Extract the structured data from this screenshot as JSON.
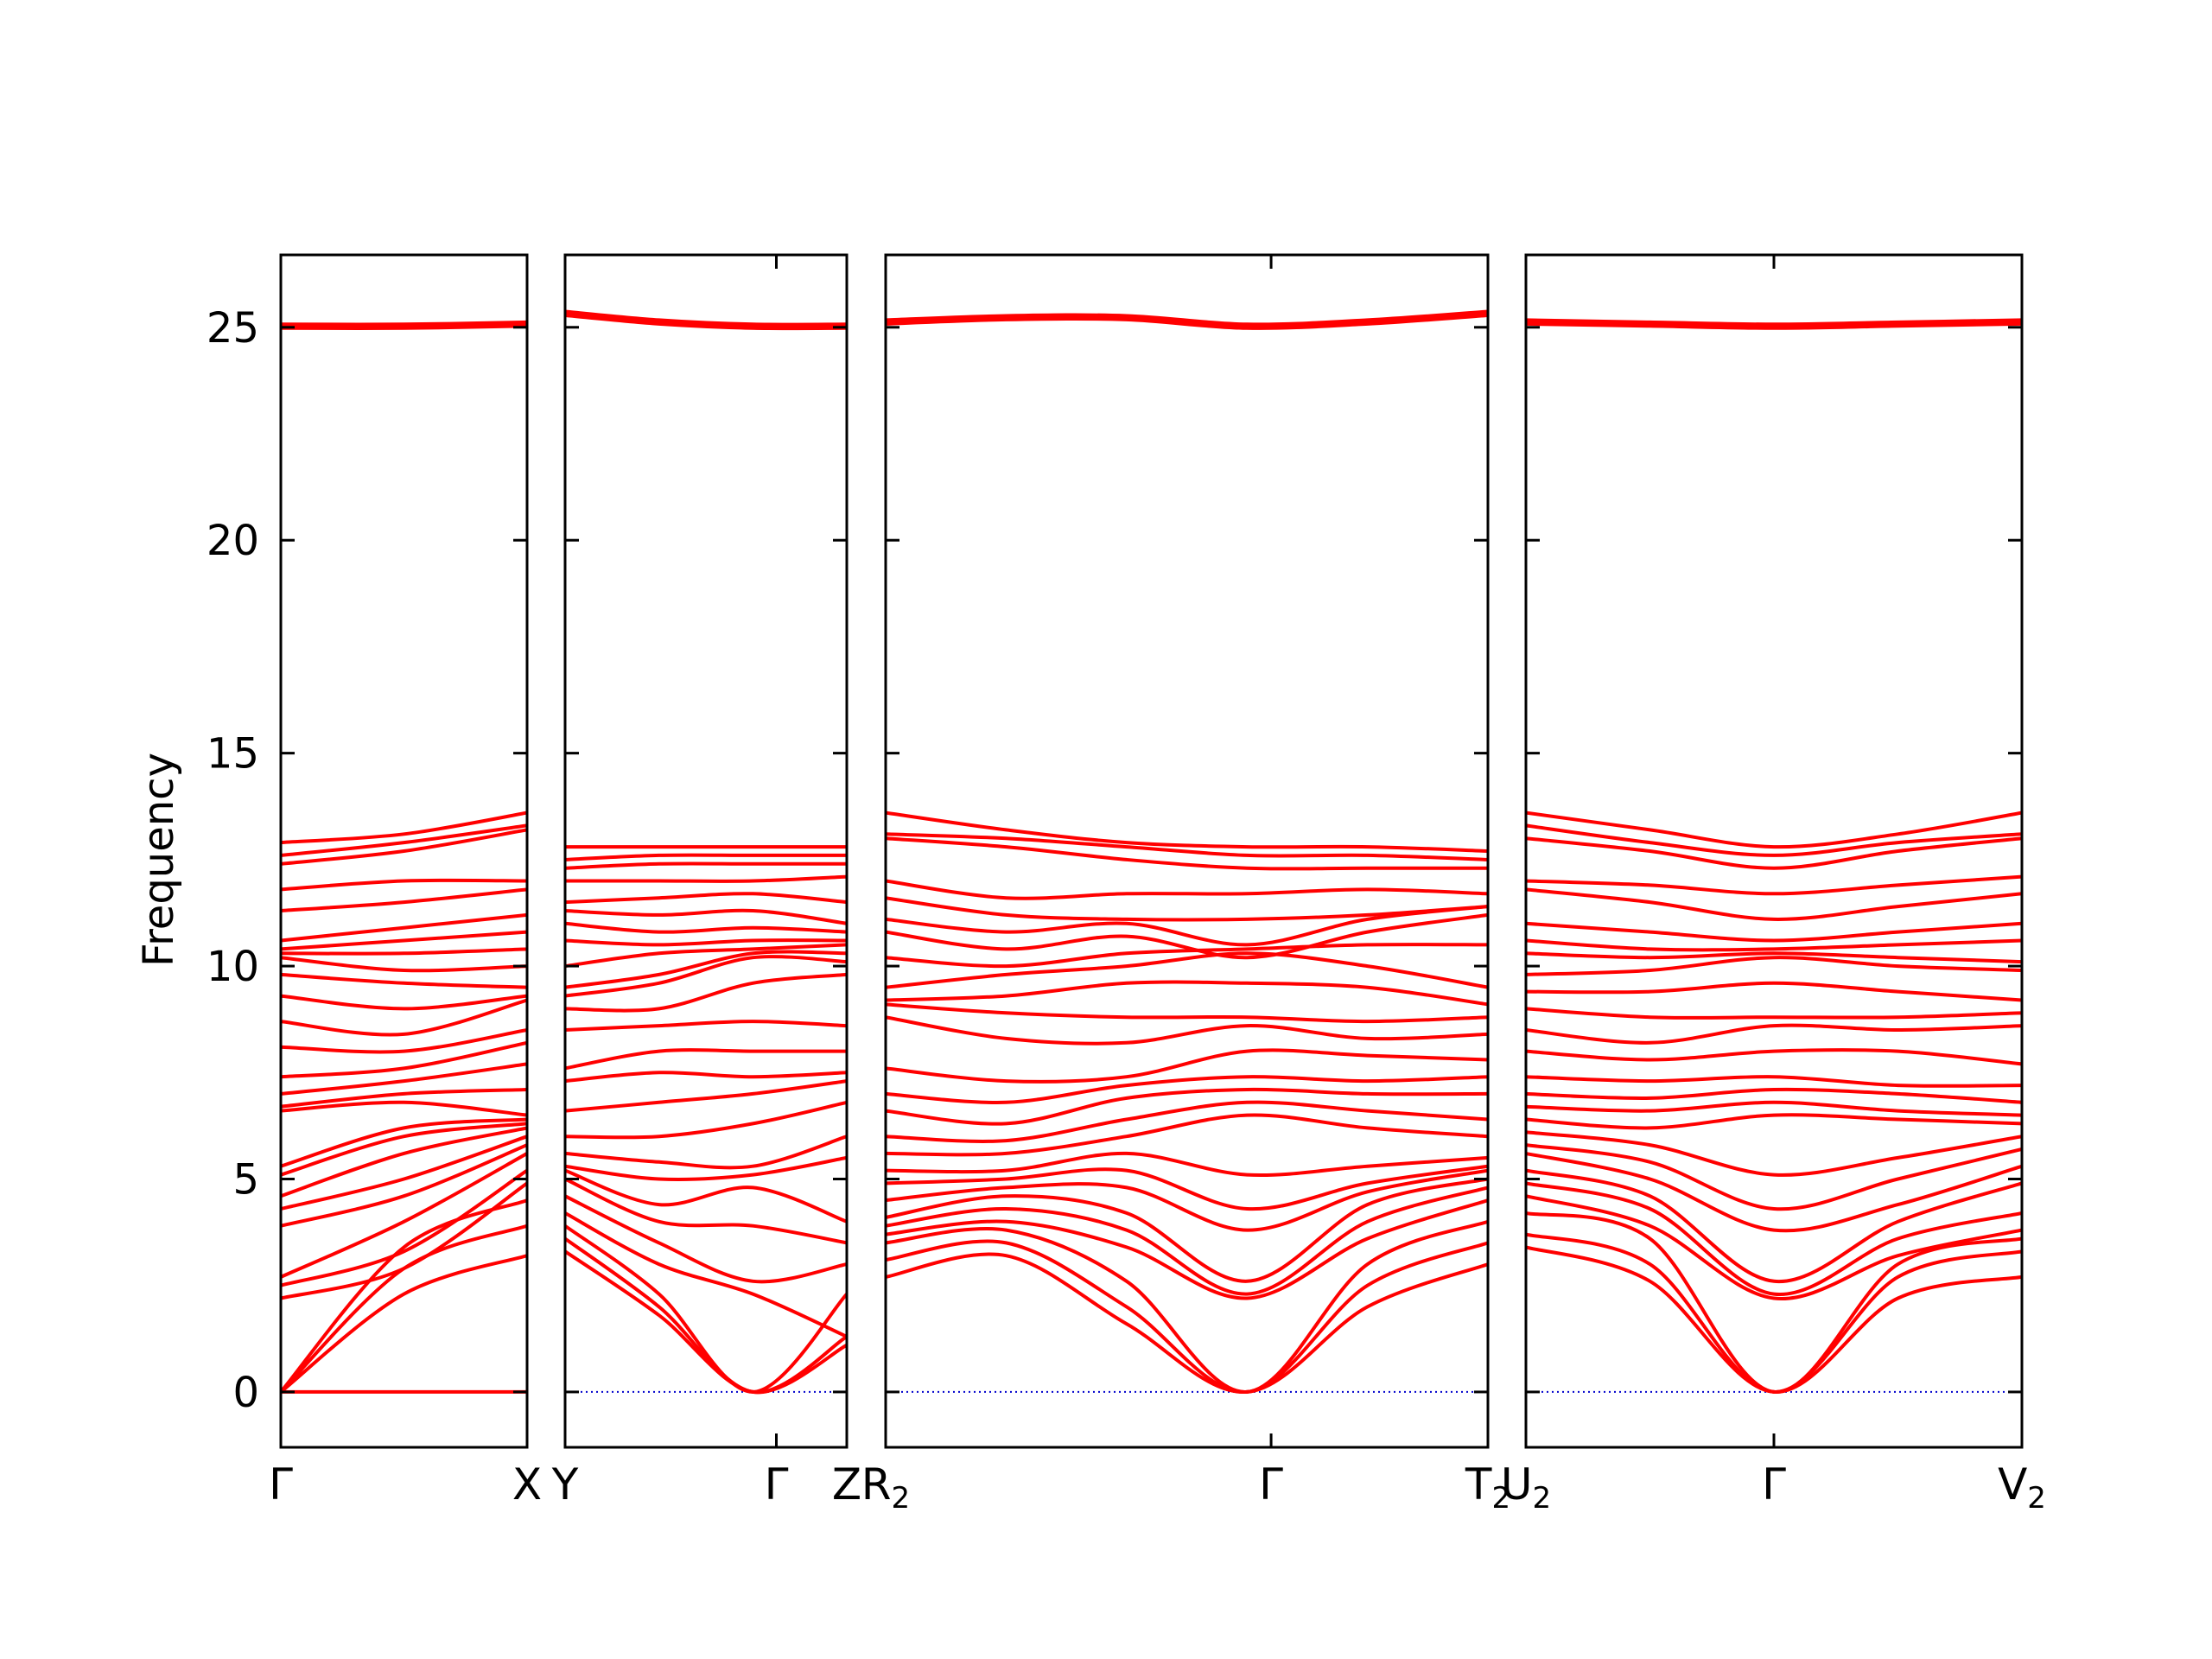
{
  "chart_data": {
    "type": "line",
    "title": "",
    "ylabel": "Frequency",
    "ylim": [
      -1.3,
      26.7
    ],
    "yticks": [
      "0",
      "5",
      "10",
      "15",
      "20",
      "25"
    ],
    "ytick_values": [
      0,
      5,
      10,
      15,
      20,
      25
    ],
    "line_color": "#ff0000",
    "zero_line_color": "#0000cc",
    "grid": false,
    "panels": [
      {
        "labels": [
          {
            "main": "Γ",
            "sub": "",
            "pos": 0.0
          },
          {
            "main": "X",
            "sub": "",
            "pos": 1.0
          }
        ],
        "branches_top": [
          [
            0.0,
            0.0,
            0.0
          ],
          [
            0.0,
            2.3,
            3.2
          ],
          [
            0.0,
            2.9,
            3.9
          ],
          [
            0.0,
            3.4,
            4.5
          ],
          [
            2.2,
            2.9,
            4.9
          ],
          [
            2.5,
            3.3,
            5.2
          ],
          [
            2.7,
            4.0,
            5.6
          ],
          [
            3.9,
            4.6,
            5.8
          ],
          [
            4.3,
            5.0,
            6.0
          ],
          [
            4.6,
            5.6,
            6.2
          ],
          [
            5.1,
            6.0,
            6.3
          ],
          [
            5.3,
            6.2,
            6.4
          ],
          [
            6.6,
            6.8,
            6.5
          ],
          [
            6.7,
            7.0,
            7.1
          ],
          [
            7.0,
            7.3,
            7.7
          ],
          [
            7.4,
            7.6,
            8.2
          ],
          [
            8.1,
            8.0,
            8.5
          ],
          [
            8.7,
            8.4,
            9.2
          ],
          [
            9.3,
            9.0,
            9.3
          ],
          [
            9.8,
            9.6,
            9.5
          ],
          [
            10.2,
            9.9,
            10.0
          ],
          [
            10.3,
            10.3,
            10.4
          ],
          [
            10.4,
            10.6,
            10.8
          ],
          [
            10.6,
            10.9,
            11.2
          ],
          [
            11.3,
            11.5,
            11.8
          ],
          [
            11.8,
            12.0,
            12.0
          ],
          [
            12.4,
            12.7,
            13.2
          ],
          [
            12.6,
            12.9,
            13.3
          ],
          [
            12.9,
            13.1,
            13.6
          ],
          [
            25.0,
            25.0,
            25.05
          ],
          [
            25.05,
            25.05,
            25.1
          ]
        ]
      },
      {
        "labels": [
          {
            "main": "Y",
            "sub": "",
            "pos": 0.0
          },
          {
            "main": "Γ",
            "sub": "",
            "pos": 0.75
          },
          {
            "main": "Z",
            "sub": "",
            "pos": 1.0
          }
        ],
        "branches_top": [
          [
            3.3,
            1.8,
            0.0,
            1.1
          ],
          [
            3.6,
            2.0,
            0.0,
            1.3
          ],
          [
            3.9,
            2.3,
            0.0,
            2.3
          ],
          [
            4.2,
            3.0,
            2.3,
            1.3
          ],
          [
            4.6,
            3.5,
            2.6,
            3.0
          ],
          [
            5.0,
            4.0,
            3.9,
            3.5
          ],
          [
            5.2,
            4.4,
            4.8,
            4.0
          ],
          [
            5.3,
            5.0,
            5.1,
            5.5
          ],
          [
            5.6,
            5.4,
            5.3,
            6.0
          ],
          [
            6.0,
            6.0,
            6.3,
            6.8
          ],
          [
            6.6,
            6.8,
            7.0,
            7.3
          ],
          [
            7.3,
            7.5,
            7.4,
            7.5
          ],
          [
            7.6,
            8.0,
            8.0,
            8.0
          ],
          [
            8.5,
            8.6,
            8.7,
            8.6
          ],
          [
            9.0,
            9.0,
            9.6,
            9.8
          ],
          [
            9.3,
            9.6,
            10.2,
            10.1
          ],
          [
            9.5,
            9.8,
            10.3,
            10.3
          ],
          [
            10.0,
            10.3,
            10.4,
            10.5
          ],
          [
            10.6,
            10.5,
            10.6,
            10.6
          ],
          [
            11.0,
            10.8,
            10.9,
            10.8
          ],
          [
            11.3,
            11.2,
            11.3,
            11.0
          ],
          [
            11.5,
            11.6,
            11.7,
            11.5
          ],
          [
            12.0,
            12.0,
            12.0,
            12.1
          ],
          [
            12.3,
            12.4,
            12.4,
            12.4
          ],
          [
            12.5,
            12.6,
            12.6,
            12.6
          ],
          [
            12.8,
            12.8,
            12.8,
            12.8
          ],
          [
            25.3,
            25.1,
            25.0,
            25.0
          ],
          [
            25.35,
            25.15,
            25.05,
            25.05
          ]
        ]
      },
      {
        "labels": [
          {
            "main": "R",
            "sub": "2",
            "pos": 0.0
          },
          {
            "main": "Γ",
            "sub": "",
            "pos": 0.64
          },
          {
            "main": "T",
            "sub": "2",
            "pos": 1.0
          }
        ],
        "branches_top": [
          [
            2.7,
            3.2,
            1.6,
            0.0,
            2.0,
            3.0
          ],
          [
            3.1,
            3.5,
            2.0,
            0.0,
            2.5,
            3.5
          ],
          [
            3.5,
            3.8,
            2.6,
            0.0,
            3.0,
            4.0
          ],
          [
            3.7,
            4.0,
            3.4,
            2.2,
            3.6,
            4.5
          ],
          [
            3.9,
            4.3,
            3.8,
            2.3,
            4.0,
            4.8
          ],
          [
            4.1,
            4.6,
            4.2,
            2.6,
            4.4,
            5.0
          ],
          [
            4.5,
            4.8,
            4.8,
            3.8,
            4.7,
            5.2
          ],
          [
            4.9,
            5.0,
            5.2,
            4.3,
            4.9,
            5.3
          ],
          [
            5.2,
            5.2,
            5.6,
            5.1,
            5.3,
            5.5
          ],
          [
            5.6,
            5.6,
            6.0,
            6.5,
            6.2,
            6.0
          ],
          [
            6.0,
            5.9,
            6.4,
            6.8,
            6.6,
            6.4
          ],
          [
            6.6,
            6.3,
            6.9,
            7.1,
            7.0,
            7.0
          ],
          [
            7.0,
            6.8,
            7.2,
            7.4,
            7.3,
            7.4
          ],
          [
            7.6,
            7.3,
            7.4,
            8.0,
            7.9,
            7.8
          ],
          [
            8.8,
            8.3,
            8.2,
            8.6,
            8.3,
            8.4
          ],
          [
            9.1,
            8.9,
            8.8,
            8.8,
            8.7,
            8.8
          ],
          [
            9.2,
            9.3,
            9.6,
            9.6,
            9.5,
            9.1
          ],
          [
            9.5,
            9.8,
            10.0,
            10.3,
            10.0,
            9.5
          ],
          [
            10.2,
            10.0,
            10.3,
            10.4,
            10.5,
            10.5
          ],
          [
            10.8,
            10.4,
            10.7,
            10.2,
            10.8,
            11.2
          ],
          [
            11.1,
            10.8,
            11.0,
            10.5,
            11.1,
            11.4
          ],
          [
            11.6,
            11.2,
            11.1,
            11.1,
            11.2,
            11.4
          ],
          [
            12.0,
            11.6,
            11.7,
            11.7,
            11.8,
            11.7
          ],
          [
            13.0,
            12.8,
            12.5,
            12.3,
            12.3,
            12.3
          ],
          [
            13.1,
            13.0,
            12.8,
            12.6,
            12.6,
            12.5
          ],
          [
            13.6,
            13.2,
            12.9,
            12.8,
            12.8,
            12.7
          ],
          [
            25.1,
            25.2,
            25.2,
            25.0,
            25.1,
            25.3
          ],
          [
            25.15,
            25.25,
            25.25,
            25.05,
            25.15,
            25.35
          ]
        ]
      },
      {
        "labels": [
          {
            "main": "U",
            "sub": "2",
            "pos": 0.0
          },
          {
            "main": "Γ",
            "sub": "",
            "pos": 0.5
          },
          {
            "main": "V",
            "sub": "2",
            "pos": 1.0
          }
        ],
        "branches_top": [
          [
            3.4,
            2.6,
            0.0,
            2.2,
            2.7
          ],
          [
            3.7,
            3.0,
            0.0,
            2.7,
            3.3
          ],
          [
            4.2,
            3.6,
            0.0,
            3.0,
            3.6
          ],
          [
            4.6,
            3.9,
            2.2,
            3.2,
            3.8
          ],
          [
            4.9,
            4.3,
            2.3,
            3.6,
            4.2
          ],
          [
            5.2,
            4.6,
            2.6,
            4.0,
            4.9
          ],
          [
            5.6,
            5.0,
            3.8,
            4.4,
            5.3
          ],
          [
            5.8,
            5.4,
            4.3,
            5.0,
            5.7
          ],
          [
            6.1,
            5.8,
            5.1,
            5.5,
            6.0
          ],
          [
            6.4,
            6.2,
            6.5,
            6.4,
            6.3
          ],
          [
            6.7,
            6.6,
            6.8,
            6.6,
            6.5
          ],
          [
            7.0,
            6.9,
            7.1,
            7.0,
            6.8
          ],
          [
            7.4,
            7.3,
            7.4,
            7.2,
            7.2
          ],
          [
            8.0,
            7.8,
            8.0,
            8.0,
            7.7
          ],
          [
            8.5,
            8.2,
            8.6,
            8.5,
            8.6
          ],
          [
            9.0,
            8.8,
            8.8,
            8.8,
            8.9
          ],
          [
            9.4,
            9.4,
            9.6,
            9.4,
            9.2
          ],
          [
            9.8,
            9.9,
            10.2,
            10.0,
            9.9
          ],
          [
            10.3,
            10.2,
            10.3,
            10.2,
            10.1
          ],
          [
            10.6,
            10.4,
            10.4,
            10.5,
            10.6
          ],
          [
            11.0,
            10.8,
            10.6,
            10.8,
            11.0
          ],
          [
            11.8,
            11.5,
            11.1,
            11.4,
            11.7
          ],
          [
            12.0,
            11.9,
            11.7,
            11.9,
            12.1
          ],
          [
            13.0,
            12.7,
            12.3,
            12.7,
            13.0
          ],
          [
            13.3,
            12.9,
            12.6,
            12.9,
            13.1
          ],
          [
            13.6,
            13.2,
            12.8,
            13.1,
            13.6
          ],
          [
            25.1,
            25.05,
            25.0,
            25.05,
            25.1
          ],
          [
            25.15,
            25.1,
            25.05,
            25.1,
            25.15
          ]
        ]
      }
    ]
  }
}
